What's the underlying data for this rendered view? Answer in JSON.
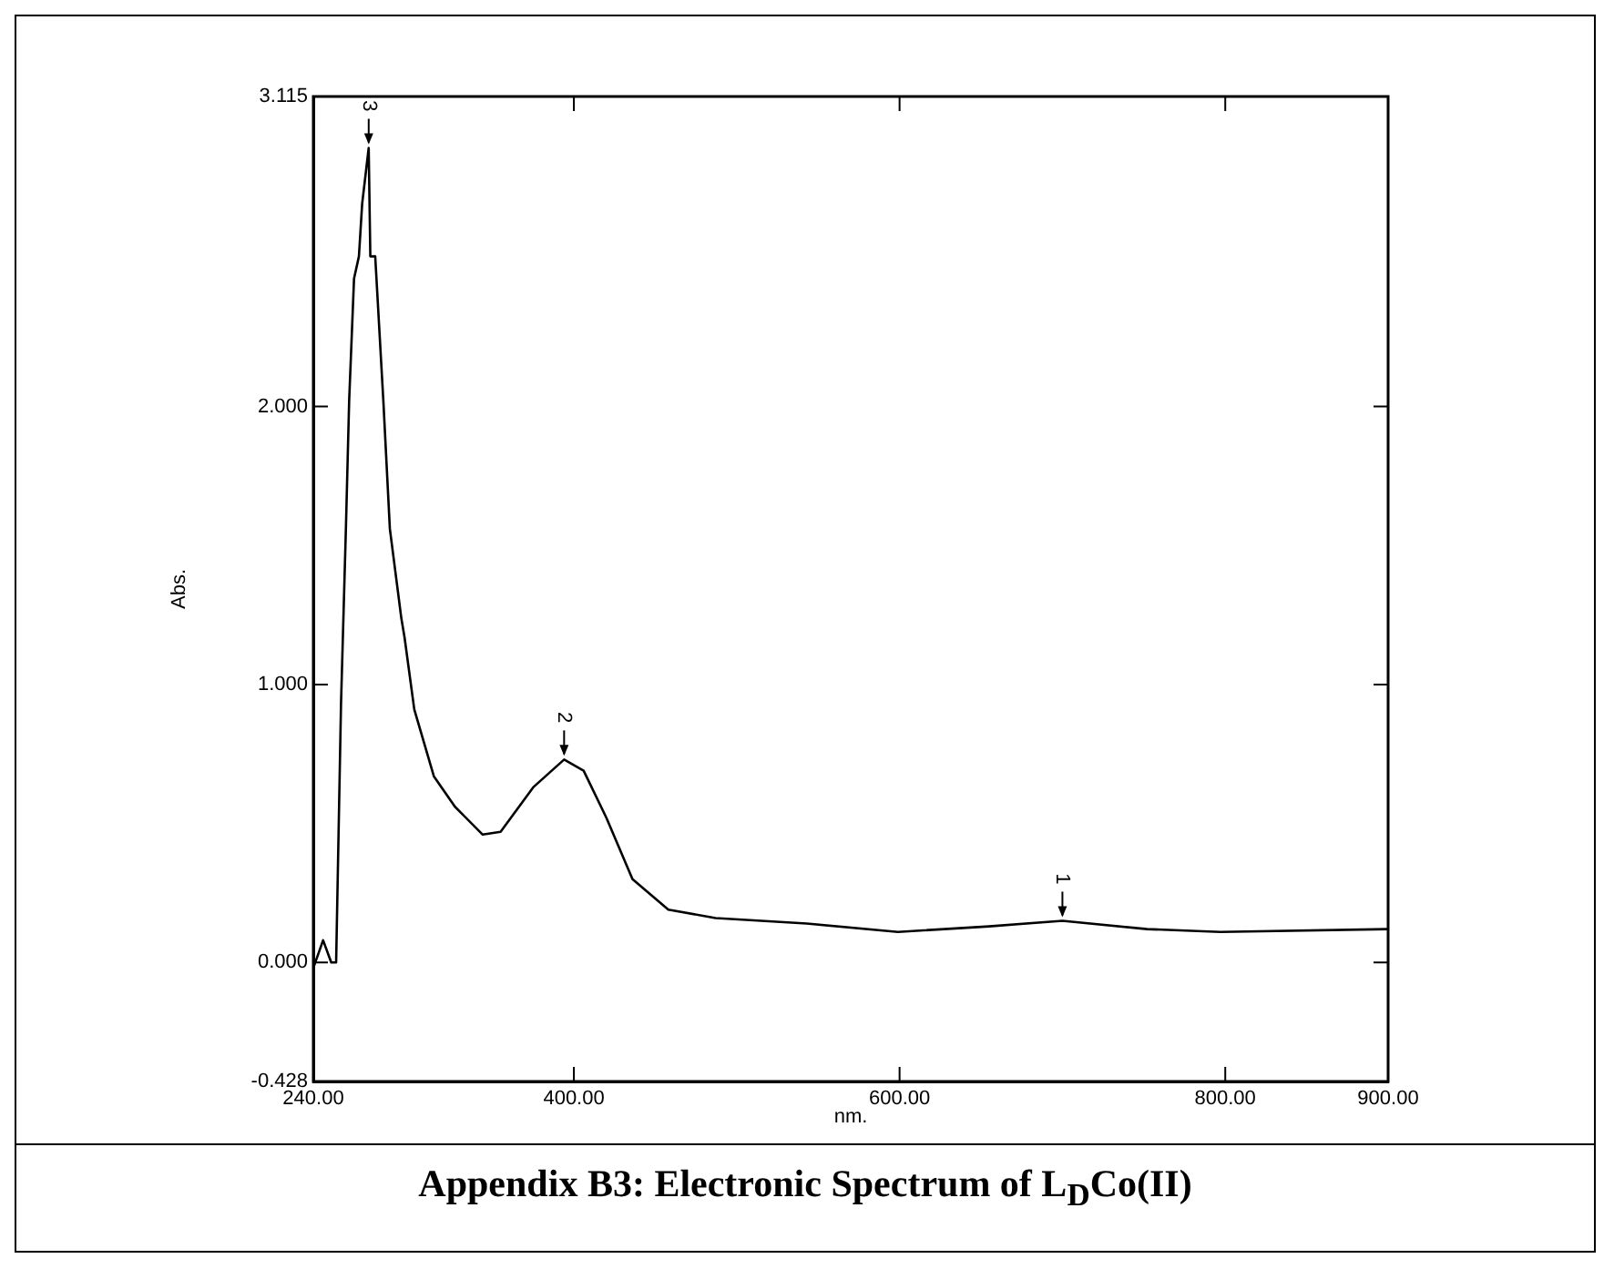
{
  "chart_data": {
    "type": "line",
    "title": "Appendix B3: Electronic Spectrum of L$_{D}$Co(II)",
    "xlabel": "nm.",
    "ylabel": "Abs.",
    "xlim": [
      240,
      900
    ],
    "ylim": [
      -0.428,
      3.115
    ],
    "xticks": [
      {
        "value": 240,
        "label": "240.00"
      },
      {
        "value": 400,
        "label": "400.00"
      },
      {
        "value": 600,
        "label": "600.00"
      },
      {
        "value": 800,
        "label": "800.00"
      },
      {
        "value": 900,
        "label": "900.00"
      }
    ],
    "yticks": [
      {
        "value": -0.428,
        "label": "-0.428"
      },
      {
        "value": 0,
        "label": "0.000"
      },
      {
        "value": 1,
        "label": "1.000"
      },
      {
        "value": 2,
        "label": "2.000"
      },
      {
        "value": 3.115,
        "label": "3.115"
      }
    ],
    "grid": false,
    "legend": false,
    "marker": "none",
    "line_style": "solid",
    "annotations": [
      {
        "text": "3",
        "x": 274,
        "y": 2.93
      },
      {
        "text": "2",
        "x": 394,
        "y": 0.73
      },
      {
        "text": "1",
        "x": 700,
        "y": 0.15
      }
    ],
    "series": [
      {
        "color": "#000000",
        "x": [
          240,
          246,
          251,
          254,
          257,
          260,
          262,
          265,
          268,
          270,
          274,
          275,
          278,
          283,
          287,
          294,
          296,
          302,
          314,
          327,
          344,
          355,
          375,
          394,
          406,
          420,
          436,
          458,
          487,
          543,
          599,
          655,
          700,
          752,
          797,
          900
        ],
        "values": [
          -0.02,
          0.08,
          0.0,
          0.0,
          0.93,
          1.56,
          2.02,
          2.46,
          2.54,
          2.73,
          2.93,
          2.54,
          2.54,
          2.02,
          1.56,
          1.24,
          1.17,
          0.91,
          0.67,
          0.56,
          0.46,
          0.47,
          0.63,
          0.73,
          0.69,
          0.52,
          0.3,
          0.19,
          0.16,
          0.14,
          0.11,
          0.13,
          0.15,
          0.12,
          0.11,
          0.12
        ]
      }
    ]
  }
}
